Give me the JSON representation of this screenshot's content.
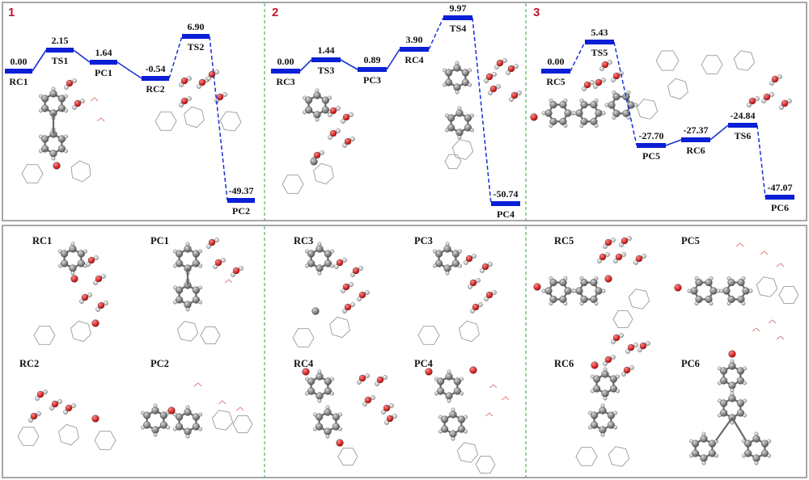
{
  "panels": [
    {
      "number": "1",
      "levels": [
        {
          "label": "RC1",
          "energy": "0.00",
          "value": 0.0
        },
        {
          "label": "TS1",
          "energy": "2.15",
          "value": 2.15
        },
        {
          "label": "PC1",
          "energy": "1.64",
          "value": 1.64
        },
        {
          "label": "RC2",
          "energy": "-0.54",
          "value": -0.54
        },
        {
          "label": "TS2",
          "energy": "6.90",
          "value": 6.9
        },
        {
          "label": "PC2",
          "energy": "-49.37",
          "value": -49.37
        }
      ]
    },
    {
      "number": "2",
      "levels": [
        {
          "label": "RC3",
          "energy": "0.00",
          "value": 0.0
        },
        {
          "label": "TS3",
          "energy": "1.44",
          "value": 1.44
        },
        {
          "label": "PC3",
          "energy": "0.89",
          "value": 0.89
        },
        {
          "label": "RC4",
          "energy": "3.90",
          "value": 3.9
        },
        {
          "label": "TS4",
          "energy": "9.97",
          "value": 9.97
        },
        {
          "label": "PC4",
          "energy": "-50.74",
          "value": -50.74
        }
      ]
    },
    {
      "number": "3",
      "levels": [
        {
          "label": "RC5",
          "energy": "0.00",
          "value": 0.0
        },
        {
          "label": "TS5",
          "energy": "5.43",
          "value": 5.43
        },
        {
          "label": "PC5",
          "energy": "-27.70",
          "value": -27.7
        },
        {
          "label": "RC6",
          "energy": "-27.37",
          "value": -27.37
        },
        {
          "label": "TS6",
          "energy": "-24.84",
          "value": -24.84
        },
        {
          "label": "PC6",
          "energy": "-47.07",
          "value": -47.07
        }
      ]
    }
  ],
  "structures": {
    "group1": [
      "RC1",
      "PC1",
      "RC2",
      "PC2"
    ],
    "group2": [
      "RC3",
      "PC3",
      "RC4",
      "PC4"
    ],
    "group3": [
      "RC5",
      "PC5",
      "RC6",
      "PC6"
    ]
  },
  "colors": {
    "level_bar": "#0a1fd6",
    "connector": "#1a2fd6",
    "panel_number": "#c0182a",
    "frame": "#8a8a8a",
    "divider": "#3aa23a",
    "oxygen_atom": "#d41414",
    "carbon_atom": "#7a7a7a",
    "hydrogen_atom": "#ffffff"
  },
  "icons": [
    "molecule-ball-and-stick-icon",
    "water-cluster-icon",
    "wireframe-molecule-icon"
  ]
}
